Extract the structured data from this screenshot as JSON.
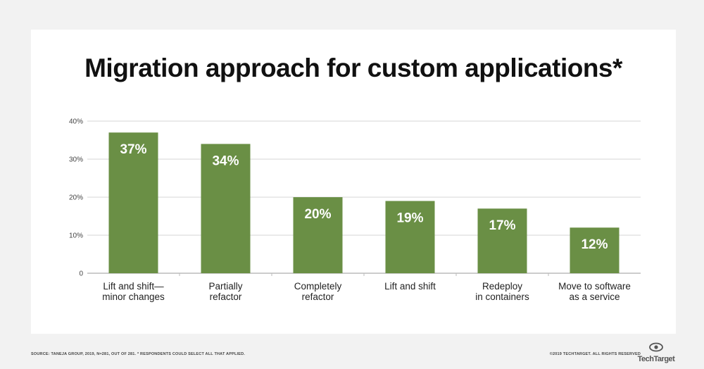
{
  "chart_data": {
    "type": "bar",
    "title": "Migration approach for custom applications*",
    "categories": [
      [
        "Lift and shift—",
        "minor changes"
      ],
      [
        "Partially",
        "refactor"
      ],
      [
        "Completely",
        "refactor"
      ],
      [
        "Lift and shift"
      ],
      [
        "Redeploy",
        "in containers"
      ],
      [
        "Move to software",
        "as a service"
      ]
    ],
    "values": [
      37,
      34,
      20,
      19,
      17,
      12
    ],
    "value_labels": [
      "37%",
      "34%",
      "20%",
      "19%",
      "17%",
      "12%"
    ],
    "ylim": [
      0,
      40
    ],
    "yticks": [
      0,
      10,
      20,
      30,
      40
    ],
    "ytick_labels": [
      "0",
      "10%",
      "20%",
      "30%",
      "40%"
    ],
    "grid": true,
    "bar_color": "#6a8f45"
  },
  "footer": {
    "source": "SOURCE: TANEJA GROUP, 2019, N=281, OUT OF 281. * RESPONDENTS COULD SELECT ALL THAT APPLIED.",
    "copyright": "©2019 TECHTARGET. ALL RIGHTS RESERVED",
    "logo_text": "TechTarget",
    "logo_icon": "eye-icon"
  }
}
